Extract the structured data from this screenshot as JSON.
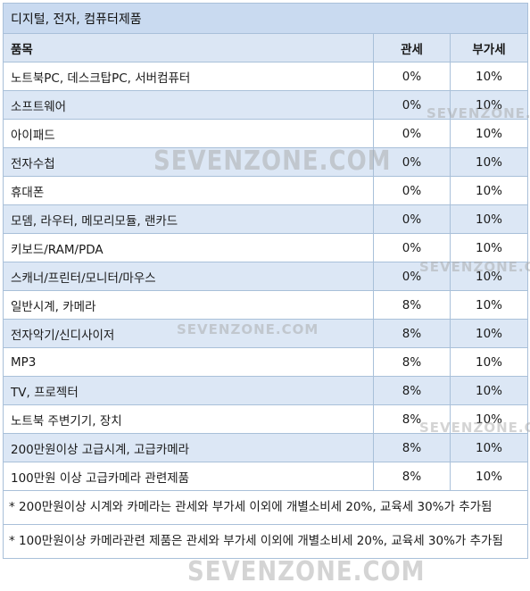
{
  "table": {
    "title": "디지털, 전자, 컴퓨터제품",
    "headers": {
      "item": "품목",
      "tariff": "관세",
      "vat": "부가세"
    },
    "rows": [
      {
        "item": "노트북PC, 데스크탑PC, 서버컴퓨터",
        "tariff": "0%",
        "vat": "10%"
      },
      {
        "item": "소프트웨어",
        "tariff": "0%",
        "vat": "10%"
      },
      {
        "item": "아이패드",
        "tariff": "0%",
        "vat": "10%"
      },
      {
        "item": "전자수첩",
        "tariff": "0%",
        "vat": "10%"
      },
      {
        "item": "휴대폰",
        "tariff": "0%",
        "vat": "10%"
      },
      {
        "item": "모뎀, 라우터, 메모리모듈, 랜카드",
        "tariff": "0%",
        "vat": "10%"
      },
      {
        "item": "키보드/RAM/PDA",
        "tariff": "0%",
        "vat": "10%"
      },
      {
        "item": "스캐너/프린터/모니터/마우스",
        "tariff": "0%",
        "vat": "10%"
      },
      {
        "item": "일반시계, 카메라",
        "tariff": "8%",
        "vat": "10%"
      },
      {
        "item": "전자악기/신디사이저",
        "tariff": "8%",
        "vat": "10%"
      },
      {
        "item": "MP3",
        "tariff": "8%",
        "vat": "10%"
      },
      {
        "item": "TV, 프로젝터",
        "tariff": "8%",
        "vat": "10%"
      },
      {
        "item": "노트북 주변기기, 장치",
        "tariff": "8%",
        "vat": "10%"
      },
      {
        "item": "200만원이상 고급시계, 고급카메라",
        "tariff": "8%",
        "vat": "10%"
      },
      {
        "item": "100만원 이상 고급카메라 관련제품",
        "tariff": "8%",
        "vat": "10%"
      }
    ],
    "notes": [
      "* 200만원이상 시계와 카메라는 관세와 부가세 이외에 개별소비세 20%, 교육세 30%가 추가됨",
      "* 100만원이상 카메라관련 제품은 관세와 부가세 이외에 개별소비세 20%, 교육세 30%가 추가됨"
    ]
  },
  "watermark": "SEVENZONE.COM"
}
